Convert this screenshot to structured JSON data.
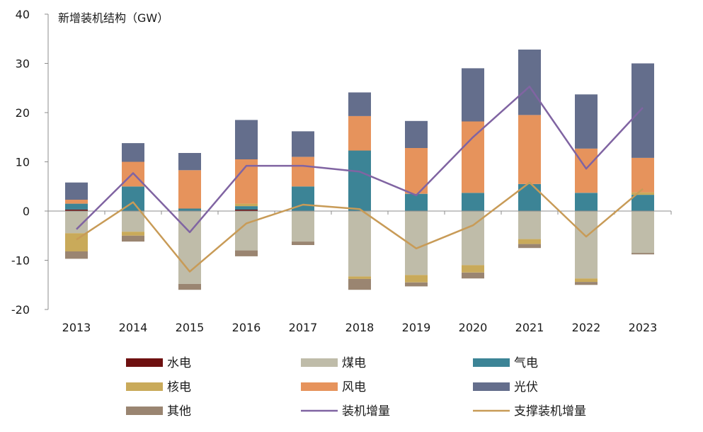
{
  "chart_data": {
    "type": "bar",
    "title": "新增装机结构（GW）",
    "xlabel": "",
    "ylabel": "",
    "ylim": [
      -20,
      40
    ],
    "yticks": [
      -20,
      -10,
      0,
      10,
      20,
      30,
      40
    ],
    "grid": false,
    "legend_position": "bottom",
    "categories": [
      "2013",
      "2014",
      "2015",
      "2016",
      "2017",
      "2018",
      "2019",
      "2020",
      "2021",
      "2022",
      "2023"
    ],
    "series": [
      {
        "name": "水电",
        "kind": "bar",
        "color": "#6e1010",
        "values": [
          0.3,
          0.0,
          0.0,
          0.3,
          0.0,
          0.0,
          0.0,
          0.0,
          0.0,
          0.0,
          0.0
        ]
      },
      {
        "name": "煤电",
        "kind": "bar",
        "color": "#bfbca9",
        "values": [
          -4.5,
          -4.2,
          -14.8,
          -8.0,
          -6.2,
          -13.3,
          -13.0,
          -11.0,
          -5.7,
          -13.7,
          -8.5
        ]
      },
      {
        "name": "气电",
        "kind": "bar",
        "color": "#3c8496",
        "values": [
          1.2,
          5.0,
          0.5,
          0.7,
          5.0,
          12.3,
          3.5,
          3.7,
          5.5,
          3.7,
          3.3
        ]
      },
      {
        "name": "核电",
        "kind": "bar",
        "color": "#c9aa5a",
        "values": [
          -3.7,
          -0.8,
          0.0,
          0.5,
          0.0,
          -0.5,
          -1.5,
          -1.5,
          -1.0,
          -0.7,
          0.5
        ]
      },
      {
        "name": "风电",
        "kind": "bar",
        "color": "#e6935c",
        "values": [
          0.8,
          5.0,
          7.8,
          9.0,
          6.0,
          7.0,
          9.3,
          14.5,
          14.0,
          9.0,
          7.0
        ]
      },
      {
        "name": "光伏",
        "kind": "bar",
        "color": "#646e8c",
        "values": [
          3.5,
          3.8,
          3.5,
          8.0,
          5.2,
          4.8,
          5.5,
          10.8,
          13.3,
          11.0,
          19.2
        ]
      },
      {
        "name": "其他",
        "kind": "bar",
        "color": "#9a8571",
        "values": [
          -1.5,
          -1.2,
          -1.2,
          -1.2,
          -0.7,
          -2.2,
          -0.8,
          -1.2,
          -0.8,
          -0.6,
          -0.3
        ]
      },
      {
        "name": "装机增量",
        "kind": "line",
        "color": "#8064a2",
        "values": [
          -3.7,
          7.7,
          -4.3,
          9.2,
          9.2,
          8.0,
          3.2,
          15.0,
          25.3,
          8.6,
          21.0
        ]
      },
      {
        "name": "支撑装机增量",
        "kind": "line",
        "color": "#c89b57",
        "values": [
          -5.8,
          1.8,
          -12.3,
          -2.5,
          1.3,
          0.4,
          -7.6,
          -2.9,
          5.8,
          -5.2,
          4.5
        ]
      }
    ]
  }
}
